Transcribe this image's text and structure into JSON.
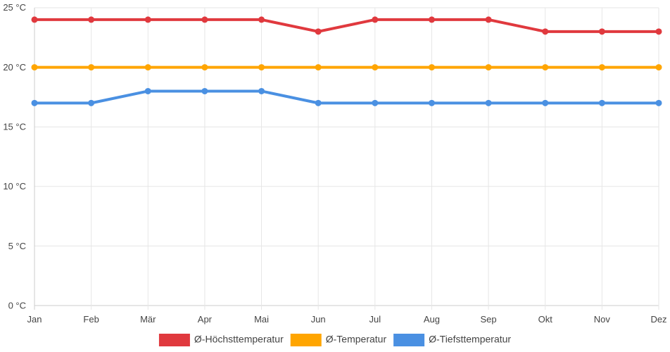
{
  "chart_data": {
    "type": "line",
    "title": "",
    "xlabel": "",
    "ylabel": "",
    "categories": [
      "Jan",
      "Feb",
      "Mär",
      "Apr",
      "Mai",
      "Jun",
      "Jul",
      "Aug",
      "Sep",
      "Okt",
      "Nov",
      "Dez"
    ],
    "ylim": [
      0,
      25
    ],
    "yticks": [
      0,
      5,
      10,
      15,
      20,
      25
    ],
    "y_tick_labels": [
      "0 °C",
      "5 °C",
      "10 °C",
      "15 °C",
      "20 °C",
      "25 °C"
    ],
    "grid": true,
    "legend_position": "bottom",
    "series": [
      {
        "name": "Ø-Höchsttemperatur",
        "color": "#e0393e",
        "values": [
          24,
          24,
          24,
          24,
          24,
          23,
          24,
          24,
          24,
          23,
          23,
          23
        ]
      },
      {
        "name": "Ø-Temperatur",
        "color": "#ffa500",
        "values": [
          20,
          20,
          20,
          20,
          20,
          20,
          20,
          20,
          20,
          20,
          20,
          20
        ]
      },
      {
        "name": "Ø-Tiefsttemperatur",
        "color": "#4a90e2",
        "values": [
          17,
          17,
          18,
          18,
          18,
          17,
          17,
          17,
          17,
          17,
          17,
          17
        ]
      }
    ]
  }
}
